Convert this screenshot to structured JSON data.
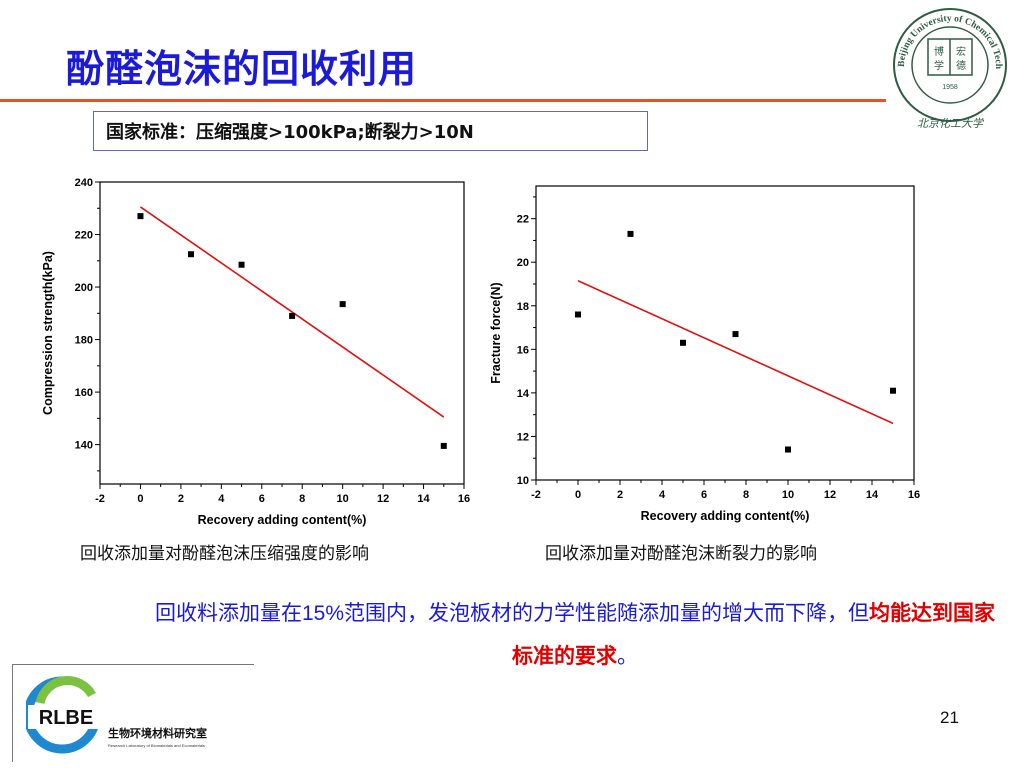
{
  "slide": {
    "title": "酚醛泡沫的回收利用",
    "standard": "国家标准：压缩强度>100kPa;断裂力>10N",
    "captions": [
      "回收添加量对酚醛泡沫压缩强度的影响",
      "回收添加量对酚醛泡沫断裂力的影响"
    ],
    "conclusion": {
      "part1": "回收料添加量在",
      "part2": "15%",
      "part3": "范围内，发泡板材的力学性能随添加量的增大而下降，但",
      "highlight": "均能达到国家标准的要求",
      "end": "。"
    },
    "page_number": "21"
  },
  "seal": {
    "ring_text": "Beijing University of Chemical Technology",
    "center_chars": [
      "博",
      "宏",
      "学",
      "德"
    ],
    "year": "1958",
    "signature": "北京化工大学"
  },
  "logo": {
    "acronym": "RLBE",
    "name_cn": "生物环境材料研究室",
    "name_en": "Research Laboratory of Biomaterials and Ecomaterials"
  },
  "colors": {
    "title": "#1a1ad8",
    "rule": "#e8502a",
    "fit_line": "#e01010",
    "highlight": "#e00000"
  },
  "chart_data": [
    {
      "type": "scatter",
      "xlabel": "Recovery adding content(%)",
      "ylabel": "Compression strength(kPa)",
      "xlim": [
        -2,
        16
      ],
      "ylim": [
        125,
        240
      ],
      "xticks": [
        -2,
        0,
        2,
        4,
        6,
        8,
        10,
        12,
        14,
        16
      ],
      "yticks": [
        140,
        160,
        180,
        200,
        220,
        240
      ],
      "points": [
        [
          0,
          227
        ],
        [
          2.5,
          212.5
        ],
        [
          5,
          208.5
        ],
        [
          7.5,
          189
        ],
        [
          10,
          193.5
        ],
        [
          15,
          139.5
        ]
      ],
      "fit_line": [
        [
          0,
          230.5
        ],
        [
          15,
          150.5
        ]
      ]
    },
    {
      "type": "scatter",
      "xlabel": "Recovery adding content(%)",
      "ylabel": "Fracture force(N)",
      "xlim": [
        -2,
        16
      ],
      "ylim": [
        10,
        23.5
      ],
      "xticks": [
        -2,
        0,
        2,
        4,
        6,
        8,
        10,
        12,
        14,
        16
      ],
      "yticks": [
        10,
        12,
        14,
        16,
        18,
        20,
        22
      ],
      "points": [
        [
          0,
          17.6
        ],
        [
          2.5,
          21.3
        ],
        [
          5,
          16.3
        ],
        [
          7.5,
          16.7
        ],
        [
          10,
          11.4
        ],
        [
          15,
          14.1
        ]
      ],
      "fit_line": [
        [
          0,
          19.15
        ],
        [
          15,
          12.6
        ]
      ]
    }
  ]
}
